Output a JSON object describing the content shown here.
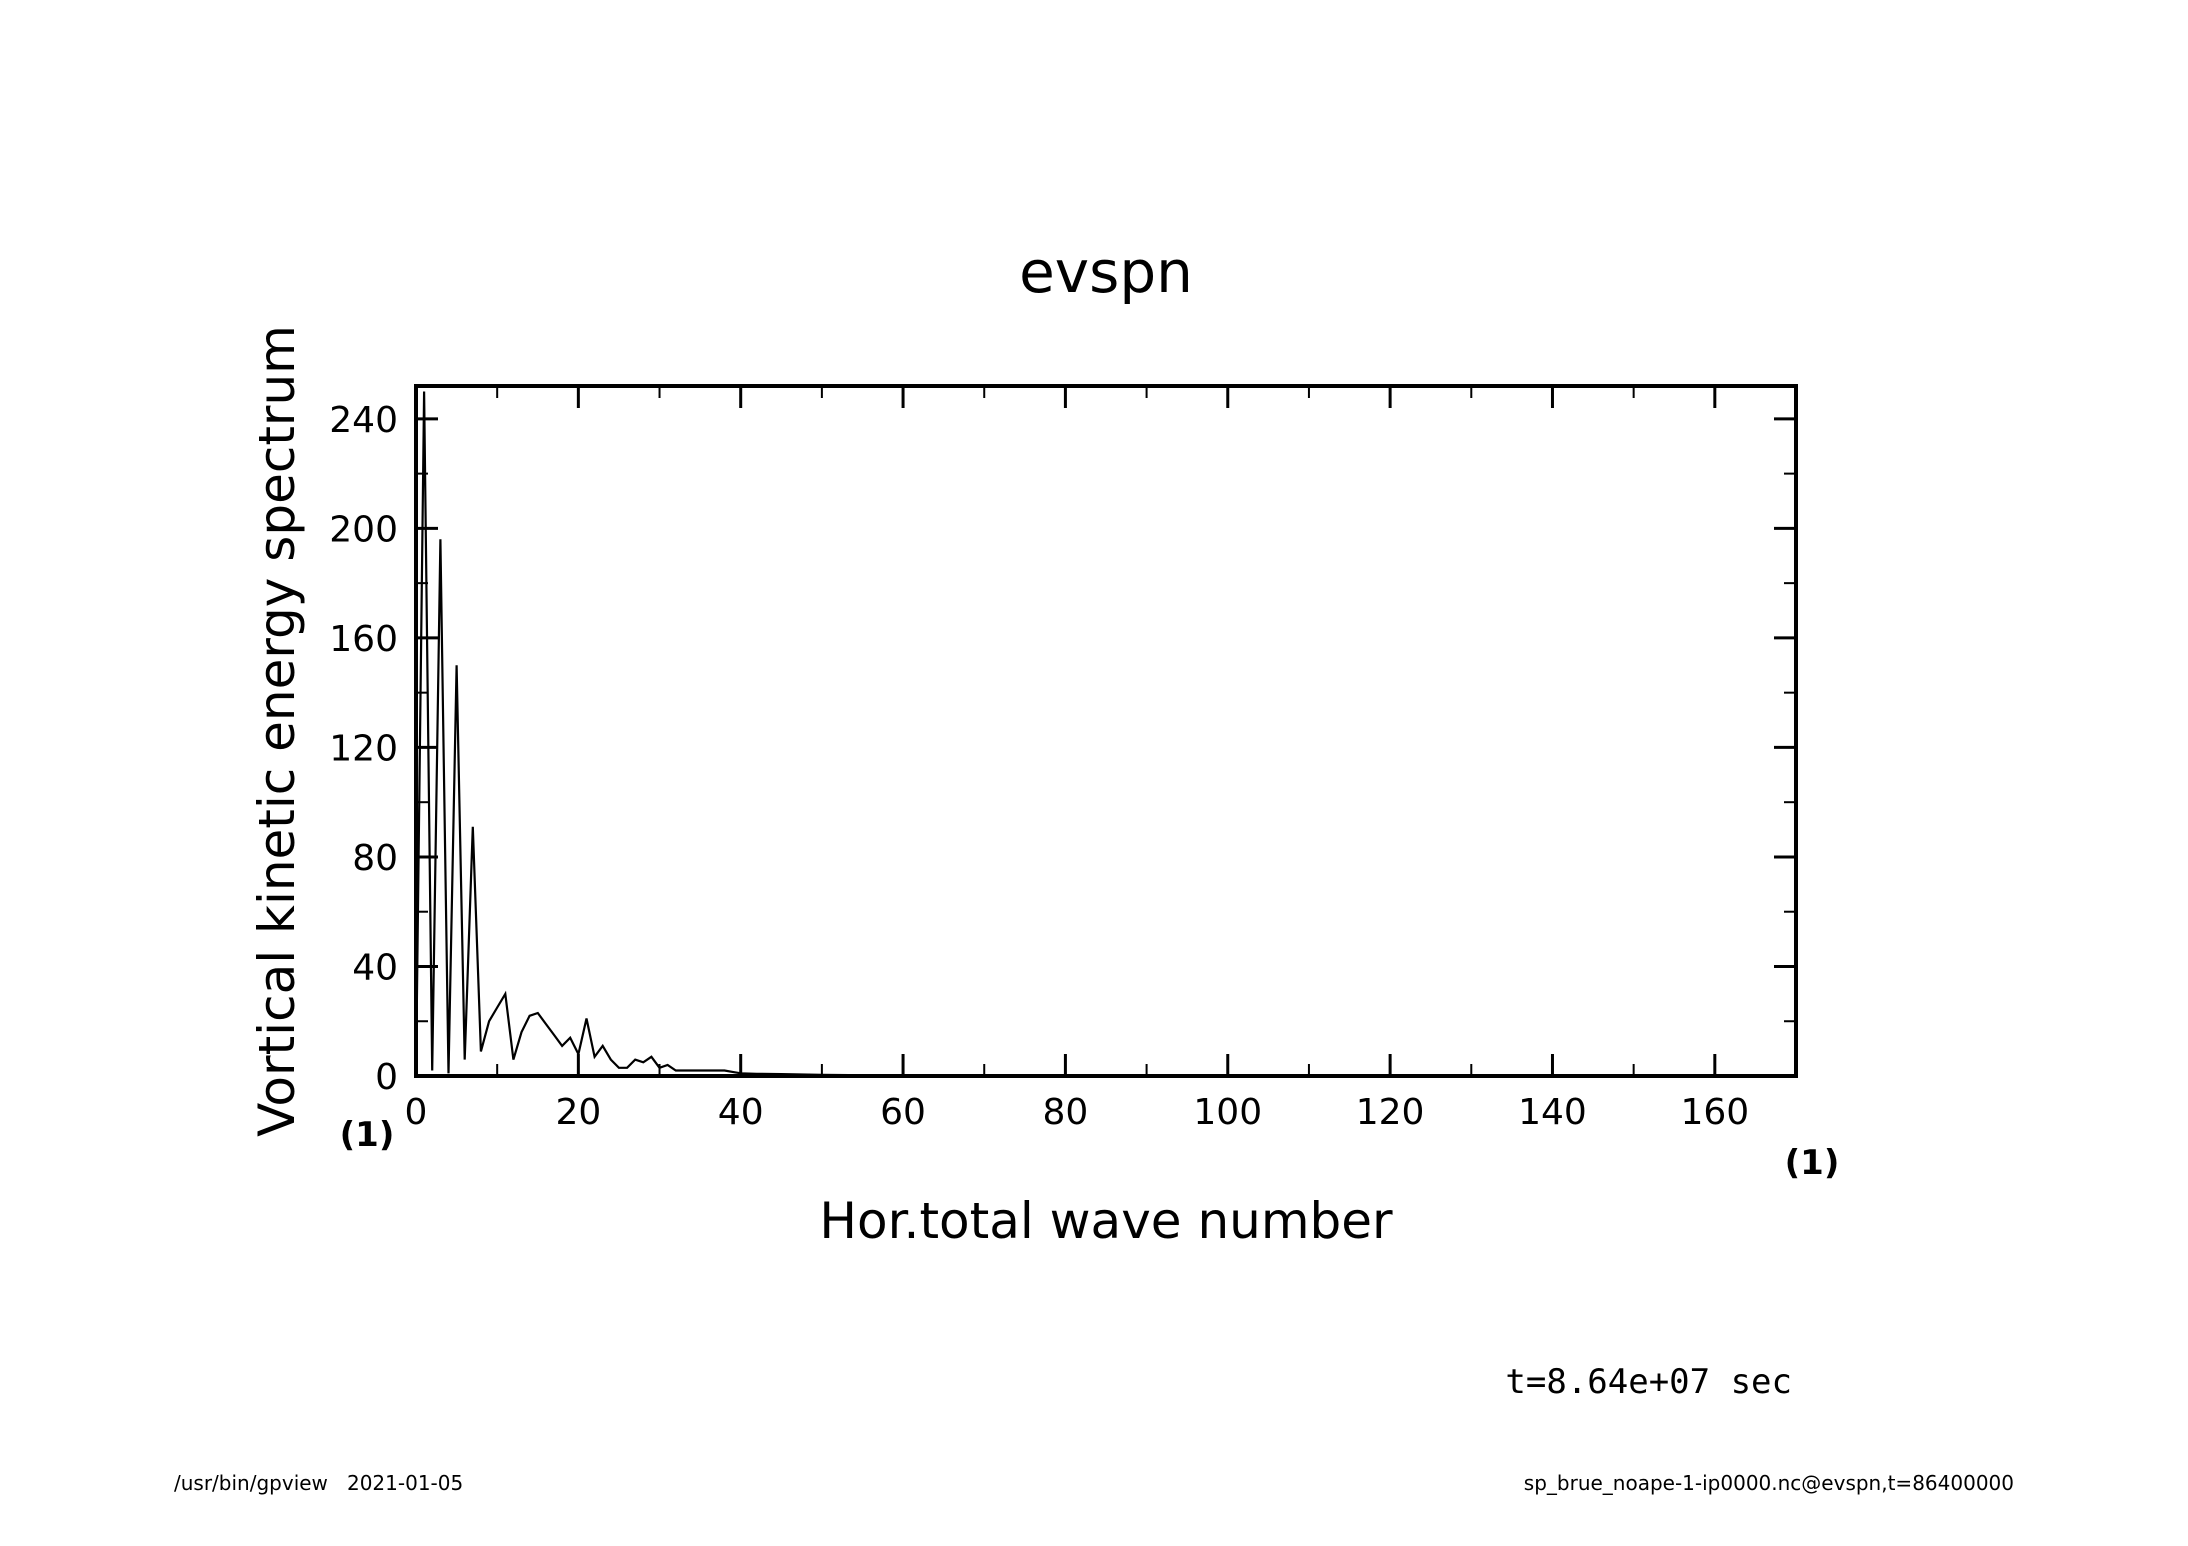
{
  "chart_data": {
    "type": "line",
    "title": "evspn",
    "xlabel": "Hor.total wave number",
    "ylabel": "Vortical kinetic energy spectrum",
    "x_unit": "(1)",
    "y_unit": "(1)",
    "xlim": [
      0,
      170
    ],
    "ylim": [
      0,
      252
    ],
    "x_ticks": [
      0,
      20,
      40,
      60,
      80,
      100,
      120,
      140,
      160
    ],
    "y_ticks": [
      0,
      40,
      80,
      120,
      160,
      200,
      240
    ],
    "x_tick_labels": [
      "0",
      "20",
      "40",
      "60",
      "80",
      "100",
      "120",
      "140",
      "160"
    ],
    "y_tick_labels": [
      "0",
      "40",
      "80",
      "120",
      "160",
      "200",
      "240"
    ],
    "grid": false,
    "series": [
      {
        "x": [
          0,
          1,
          2,
          3,
          4,
          5,
          6,
          7,
          8,
          9,
          10,
          11,
          12,
          13,
          14,
          15,
          16,
          17,
          18,
          19,
          20,
          21,
          22,
          23,
          24,
          25,
          26,
          27,
          28,
          29,
          30,
          31,
          32,
          33,
          34,
          35,
          36,
          37,
          38,
          39,
          40,
          42,
          45,
          50,
          55,
          60,
          70,
          80,
          100,
          120,
          140,
          160,
          170
        ],
        "y": [
          0,
          250,
          2,
          196,
          1,
          150,
          6,
          91,
          9,
          20,
          25,
          30,
          6,
          16,
          22,
          23,
          19,
          15,
          11,
          14,
          8,
          21,
          7,
          11,
          6,
          3,
          3,
          6,
          5,
          7,
          3,
          4,
          2,
          2,
          2,
          2,
          2,
          2,
          2,
          1.5,
          1,
          0.8,
          0.7,
          0.4,
          0.3,
          0.2,
          0.1,
          0.05,
          0.02,
          0.01,
          0.01,
          0.01,
          0.01
        ]
      }
    ]
  },
  "annotation": "t=8.64e+07 sec",
  "footer": {
    "left": "/usr/bin/gpview   2021-01-05",
    "right": "sp_brue_noape-1-ip0000.nc@evspn,t=86400000"
  }
}
